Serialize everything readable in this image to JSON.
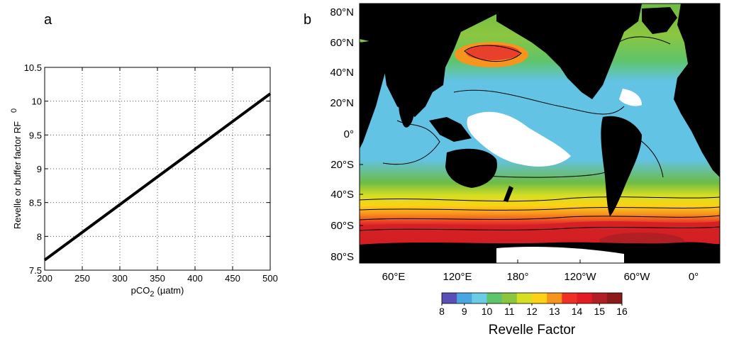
{
  "panels": {
    "a": "a",
    "b": "b"
  },
  "chart_data": [
    {
      "type": "line",
      "panel": "a",
      "xlabel": {
        "main": "pCO",
        "sub": "2",
        "unit": "(µatm)"
      },
      "ylabel": {
        "main": "Revelle or buffer factor RF",
        "sub": "0"
      },
      "xlim": [
        200,
        500
      ],
      "ylim": [
        7.5,
        10.5
      ],
      "xticks": [
        "200",
        "250",
        "300",
        "350",
        "400",
        "450",
        "500"
      ],
      "yticks": [
        "7.5",
        "8",
        "8.5",
        "9",
        "9.5",
        "10",
        "10.5"
      ],
      "grid": true,
      "series": [
        {
          "x": [
            200,
            250,
            300,
            350,
            400,
            450,
            500
          ],
          "y": [
            7.65,
            8.06,
            8.47,
            8.88,
            9.29,
            9.7,
            10.11
          ],
          "color": "#000000"
        }
      ]
    },
    {
      "type": "heatmap",
      "panel": "b",
      "lat_ticks": [
        "80°N",
        "60°N",
        "40°N",
        "20°N",
        "0°",
        "20°S",
        "40°S",
        "60°S",
        "80°S"
      ],
      "lon_ticks": [
        "60°E",
        "120°E",
        "180°",
        "120°W",
        "60°W",
        "0°"
      ],
      "colorbar": {
        "title": "Revelle Factor",
        "labels": [
          "8",
          "9",
          "10",
          "11",
          "12",
          "13",
          "14",
          "15",
          "16"
        ],
        "range": [
          8,
          16
        ],
        "stops": [
          "#5a4fb4",
          "#4aa6e0",
          "#6ccbe6",
          "#5fc46a",
          "#8cc63f",
          "#d7df23",
          "#fcd116",
          "#f7941d",
          "#ee3124",
          "#e31b23",
          "#b11f24",
          "#8b1a1a"
        ]
      },
      "colors": {
        "land": "#000000",
        "high_lat_red": "#e52a2a",
        "mid_green": "#6dbb45",
        "subtropic_blue": "#62c3e5",
        "lowest_white": "#ffffff",
        "north_pacific_red": "#e8402a"
      }
    }
  ]
}
